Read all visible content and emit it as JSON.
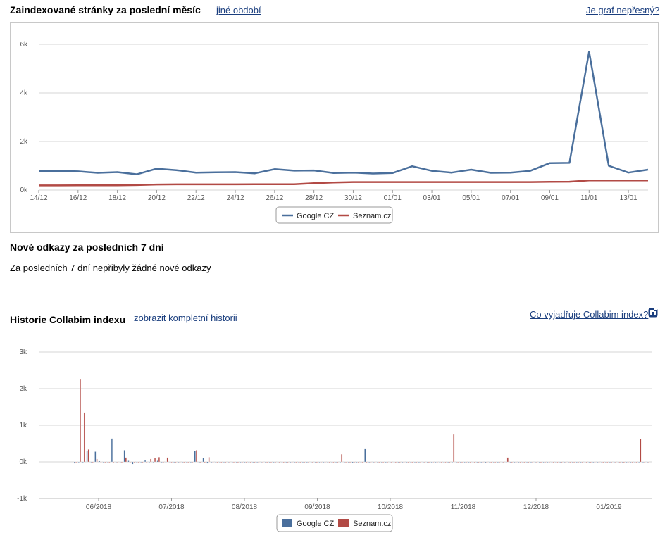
{
  "section1": {
    "title": "Zaindexované stránky za poslední měsíc",
    "other_period_link": "jiné období",
    "inaccurate_link": "Je graf nepřesný?"
  },
  "section2": {
    "title": "Nové odkazy za posledních 7 dní",
    "message": "Za posledních 7 dní nepřibyly žádné nové odkazy"
  },
  "section3": {
    "title": "Historie Collabim indexu",
    "full_history_link": "zobrazit kompletní historii",
    "meaning_link": "Co vyjadřuje Collabim index?"
  },
  "icons": {
    "info": "info-icon"
  },
  "colors": {
    "google": "#4a6f9c",
    "seznam": "#b24a45"
  },
  "chart_data": [
    {
      "type": "line",
      "x_tick_labels": [
        "14/12",
        "16/12",
        "18/12",
        "20/12",
        "22/12",
        "24/12",
        "26/12",
        "28/12",
        "30/12",
        "01/01",
        "03/01",
        "05/01",
        "07/01",
        "09/01",
        "11/01",
        "13/01"
      ],
      "y_tick_labels": [
        "0k",
        "2k",
        "4k",
        "6k"
      ],
      "ylim": [
        0,
        6000
      ],
      "grid": true,
      "legend_position": "bottom-center",
      "series": [
        {
          "name": "Google CZ",
          "values": [
            780,
            790,
            770,
            710,
            740,
            650,
            880,
            820,
            720,
            730,
            740,
            690,
            860,
            800,
            810,
            700,
            720,
            680,
            700,
            980,
            790,
            720,
            840,
            710,
            720,
            790,
            1110,
            1120,
            5700,
            1000,
            720,
            840
          ]
        },
        {
          "name": "Seznam.cz",
          "values": [
            190,
            190,
            195,
            195,
            195,
            205,
            230,
            235,
            235,
            235,
            235,
            240,
            240,
            240,
            280,
            310,
            330,
            330,
            330,
            330,
            330,
            330,
            330,
            330,
            330,
            330,
            340,
            345,
            400,
            400,
            400,
            400
          ]
        }
      ]
    },
    {
      "type": "bar",
      "x_tick_labels": [
        "06/2018",
        "07/2018",
        "08/2018",
        "09/2018",
        "10/2018",
        "11/2018",
        "12/2018",
        "01/2019"
      ],
      "y_tick_labels": [
        "-1k",
        "0k",
        "1k",
        "2k",
        "3k"
      ],
      "ylim": [
        -1000,
        3000
      ],
      "grid": true,
      "legend_position": "bottom-center",
      "series": [
        {
          "name": "Google CZ",
          "values": [
            -40,
            0,
            0,
            300,
            0,
            280,
            20,
            -20,
            0,
            640,
            0,
            0,
            320,
            30,
            -60,
            0,
            0,
            40,
            0,
            0,
            30,
            0,
            0,
            0,
            0,
            0,
            0,
            0,
            0,
            300,
            -30,
            100,
            -40,
            0,
            0,
            0,
            0,
            0,
            0,
            0,
            0,
            0,
            0,
            0,
            0,
            0,
            0,
            0,
            0,
            0,
            -20,
            0,
            0,
            0,
            0,
            0,
            0,
            0,
            0,
            0,
            0,
            0,
            0,
            0,
            0,
            0,
            0,
            -20,
            0,
            0,
            350,
            0,
            0,
            0,
            0,
            0,
            0,
            0,
            0,
            0,
            0,
            0,
            0,
            0,
            0,
            0,
            0,
            0,
            0,
            0,
            0,
            0,
            0,
            0,
            0,
            0,
            0,
            0,
            0,
            -20,
            0,
            0,
            0,
            0,
            0,
            0,
            0,
            0,
            0,
            0,
            0,
            0,
            0,
            0,
            0,
            0,
            0,
            0,
            0,
            0,
            0,
            0,
            0,
            0,
            0,
            0,
            0,
            0,
            0,
            0,
            0,
            0,
            0,
            0,
            0,
            0,
            0,
            0,
            0
          ]
        },
        {
          "name": "Seznam.cz",
          "values": [
            0,
            2250,
            1350,
            340,
            0,
            80,
            0,
            0,
            0,
            0,
            0,
            0,
            120,
            0,
            0,
            0,
            0,
            0,
            80,
            100,
            130,
            0,
            120,
            0,
            0,
            0,
            0,
            0,
            0,
            320,
            0,
            0,
            130,
            0,
            0,
            0,
            0,
            0,
            0,
            0,
            0,
            0,
            0,
            0,
            0,
            0,
            0,
            0,
            0,
            0,
            0,
            0,
            0,
            0,
            0,
            0,
            0,
            0,
            0,
            0,
            0,
            0,
            0,
            0,
            210,
            0,
            0,
            0,
            0,
            0,
            0,
            0,
            0,
            0,
            0,
            0,
            0,
            0,
            0,
            0,
            0,
            0,
            0,
            0,
            0,
            0,
            0,
            0,
            0,
            0,
            0,
            750,
            0,
            0,
            0,
            0,
            0,
            0,
            0,
            0,
            0,
            0,
            0,
            0,
            120,
            0,
            0,
            0,
            0,
            0,
            0,
            0,
            0,
            0,
            0,
            0,
            0,
            0,
            0,
            0,
            0,
            0,
            0,
            0,
            0,
            0,
            0,
            0,
            0,
            0,
            0,
            0,
            0,
            0,
            0,
            0,
            620,
            0,
            0,
            0,
            0,
            0,
            110,
            0,
            0,
            0,
            0,
            0,
            0,
            0,
            0,
            0,
            0,
            0,
            0
          ]
        }
      ]
    }
  ]
}
